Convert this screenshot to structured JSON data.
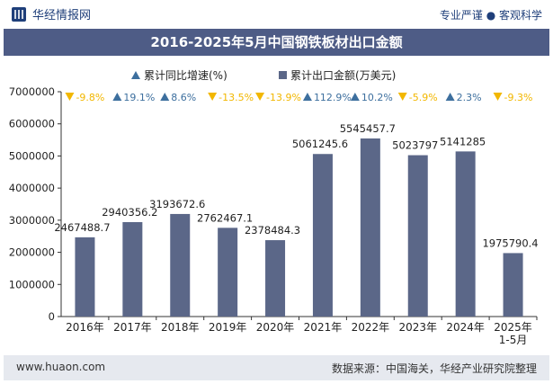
{
  "header": {
    "logo_text": "华经情报网",
    "tagline": "专业严谨 ● 客观科学"
  },
  "chart_title": "2016-2025年5月中国钢铁板材出口金额",
  "footer": {
    "url": "www.huaon.com",
    "source": "数据来源：中国海关，华经产业研究院整理"
  },
  "colors": {
    "bar": "#5b6788",
    "title_bg": "#4e5c86",
    "up": "#3d6f9e",
    "down": "#f2b700",
    "footer_bg": "#e6e9ef"
  },
  "chart_data": {
    "type": "bar",
    "categories": [
      "2016年",
      "2017年",
      "2018年",
      "2019年",
      "2020年",
      "2021年",
      "2022年",
      "2023年",
      "2024年",
      "2025年\n1-5月"
    ],
    "series": [
      {
        "name": "累计出口金额(万美元)",
        "values": [
          2467488.7,
          2940356.2,
          3193672.6,
          2762467.1,
          2378484.3,
          5061245.6,
          5545457.7,
          5023797,
          5141285,
          1975790.4
        ],
        "labels": [
          "2467488.7",
          "2940356.2",
          "3193672.6",
          "2762467.1",
          "2378484.3",
          "5061245.6",
          "5545457.7",
          "5023797",
          "5141285",
          "1975790.4"
        ]
      },
      {
        "name": "累计同比增速(%)",
        "values": [
          -9.8,
          19.1,
          8.6,
          -13.5,
          -13.9,
          112.9,
          10.2,
          -5.9,
          2.3,
          -9.3
        ],
        "labels": [
          "-9.8%",
          "19.1%",
          "8.6%",
          "-13.5%",
          "-13.9%",
          "112.9%",
          "10.2%",
          "-5.9%",
          "2.3%",
          "-9.3%"
        ]
      }
    ],
    "yticks": [
      "0",
      "1000000",
      "2000000",
      "3000000",
      "4000000",
      "5000000",
      "6000000",
      "7000000"
    ],
    "ylim": [
      0,
      7000000
    ],
    "legend": {
      "growth": "累计同比增速(%)",
      "amount": "累计出口金额(万美元)"
    },
    "legend_position": "top",
    "grid": false
  }
}
